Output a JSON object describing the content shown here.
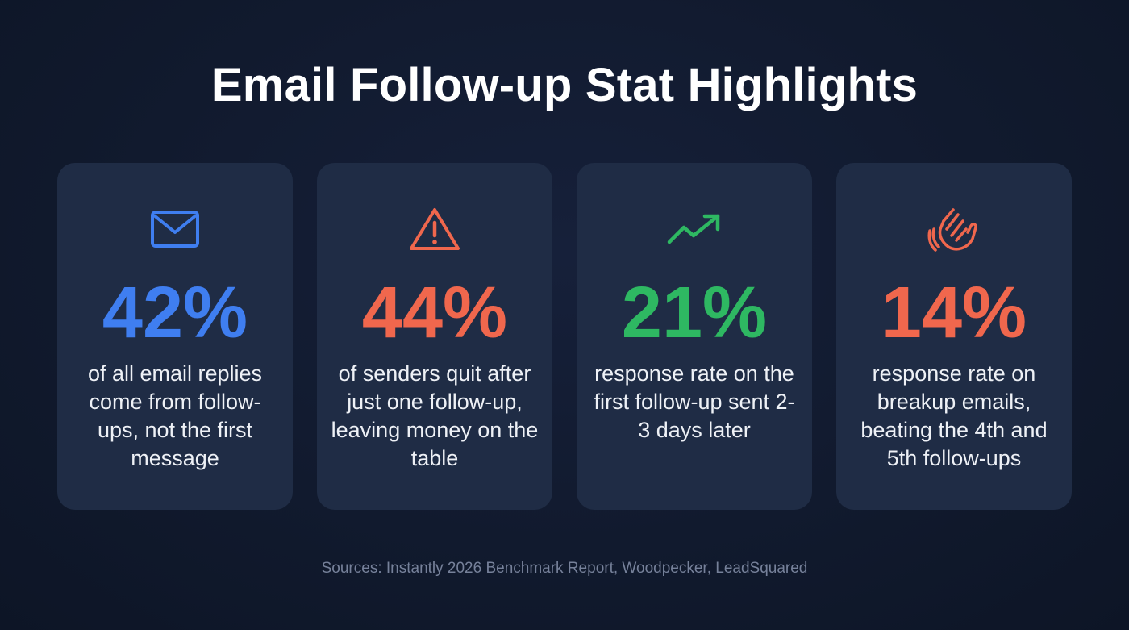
{
  "title": "Email Follow-up Stat Highlights",
  "cards": [
    {
      "icon": "envelope-icon",
      "stat": "42%",
      "color": "#3f7ef0",
      "description": "of all email replies come from follow-ups, not the first message"
    },
    {
      "icon": "warning-triangle-icon",
      "stat": "44%",
      "color": "#f0674d",
      "description": "of senders quit after just one follow-up, leaving money on the table"
    },
    {
      "icon": "trending-up-icon",
      "stat": "21%",
      "color": "#2eb862",
      "description": "response rate on the first follow-up sent 2-3 days later"
    },
    {
      "icon": "waving-hand-icon",
      "stat": "14%",
      "color": "#f0674d",
      "description": "response rate on breakup emails, beating the 4th and 5th follow-ups"
    }
  ],
  "sources": "Sources: Instantly 2026 Benchmark Report, Woodpecker, LeadSquared"
}
